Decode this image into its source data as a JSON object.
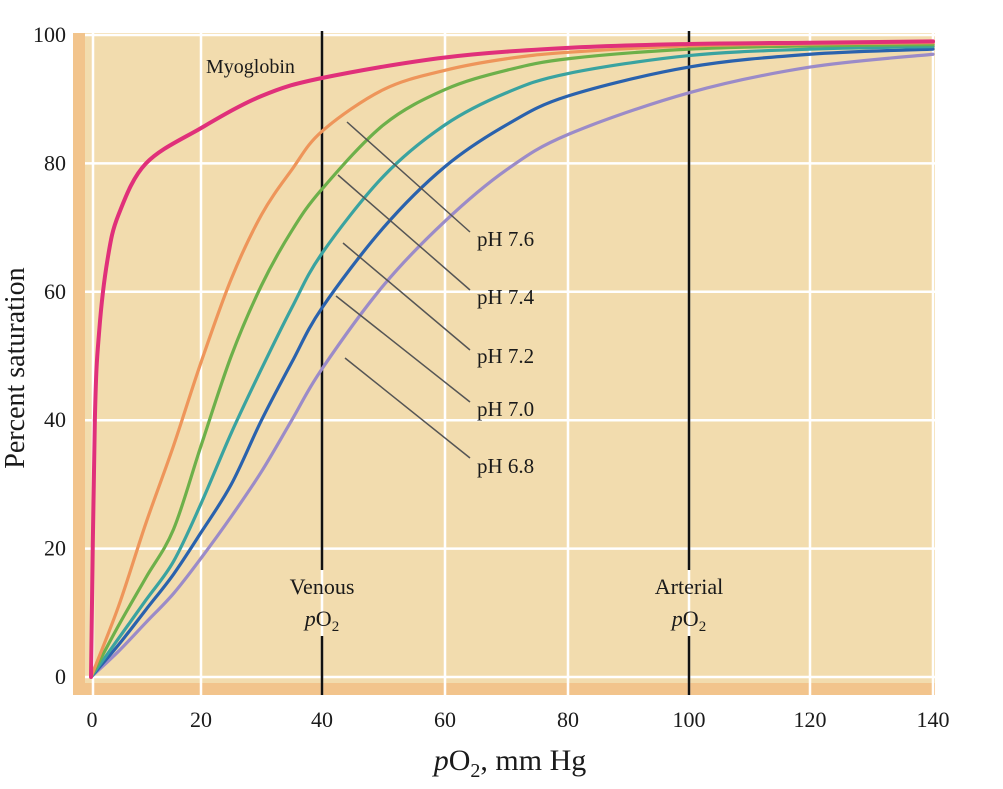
{
  "chart_data": {
    "type": "line",
    "xlabel": "pO2, mm Hg",
    "ylabel": "Percent saturation",
    "xlim": [
      0,
      140
    ],
    "ylim": [
      0,
      100
    ],
    "xticks": [
      0,
      20,
      40,
      60,
      80,
      100,
      120,
      140
    ],
    "yticks": [
      0,
      20,
      40,
      60,
      80,
      100
    ],
    "grid": true,
    "background_color": "#f2dcae",
    "series": [
      {
        "name": "Myoglobin",
        "color": "#e0307a",
        "x": [
          0,
          0.7,
          1.5,
          3,
          5,
          10,
          20,
          30,
          40,
          60,
          80,
          100,
          120,
          140
        ],
        "y": [
          0,
          40,
          54,
          65,
          72,
          80,
          85.5,
          90.5,
          93.3,
          96.5,
          98,
          98.6,
          98.8,
          99
        ]
      },
      {
        "name": "pH 7.6",
        "color": "#ee955a",
        "x": [
          0,
          5,
          10,
          15,
          20,
          25,
          30,
          35,
          40,
          50,
          60,
          70,
          80,
          100,
          120,
          140
        ],
        "y": [
          0,
          11,
          24,
          36,
          49,
          62,
          72,
          79,
          85,
          91.5,
          94.5,
          96.3,
          97.3,
          98.3,
          98.6,
          98.8
        ]
      },
      {
        "name": "pH 7.4",
        "color": "#6db04a",
        "x": [
          0,
          5,
          10,
          15,
          20,
          25,
          30,
          35,
          40,
          50,
          60,
          70,
          80,
          100,
          120,
          140
        ],
        "y": [
          0,
          8,
          15.5,
          23,
          36,
          50,
          61,
          69.5,
          76,
          86,
          91.5,
          94.5,
          96.3,
          97.8,
          98.3,
          98.5
        ]
      },
      {
        "name": "pH 7.2",
        "color": "#3aa3a0",
        "x": [
          0,
          5,
          10,
          15,
          20,
          25,
          30,
          35,
          40,
          50,
          60,
          70,
          80,
          100,
          120,
          140
        ],
        "y": [
          0,
          6,
          12,
          18,
          27,
          38,
          48,
          57.5,
          66,
          78,
          86,
          91,
          94,
          96.8,
          97.8,
          98.2
        ]
      },
      {
        "name": "pH 7.0",
        "color": "#2a62ad",
        "x": [
          0,
          5,
          10,
          15,
          20,
          25,
          30,
          35,
          40,
          50,
          60,
          70,
          80,
          100,
          120,
          140
        ],
        "y": [
          0,
          5,
          10.5,
          16,
          22.5,
          30,
          40,
          49,
          57.5,
          70,
          79.5,
          86,
          90.5,
          95,
          97,
          97.8
        ]
      },
      {
        "name": "pH 6.8",
        "color": "#9b8bc8",
        "x": [
          0,
          5,
          10,
          15,
          20,
          25,
          30,
          35,
          40,
          50,
          60,
          70,
          80,
          100,
          120,
          140
        ],
        "y": [
          0,
          4,
          8.5,
          13,
          18.5,
          25,
          32,
          40,
          48,
          61,
          71,
          79,
          84.5,
          91,
          95,
          97
        ]
      }
    ],
    "reference_lines": [
      {
        "x": 40,
        "label_line1": "Venous",
        "label_line2": "pO2"
      },
      {
        "x": 100,
        "label_line1": "Arterial",
        "label_line2": "pO2"
      }
    ],
    "annotations": {
      "myoglobin": "Myoglobin"
    }
  }
}
